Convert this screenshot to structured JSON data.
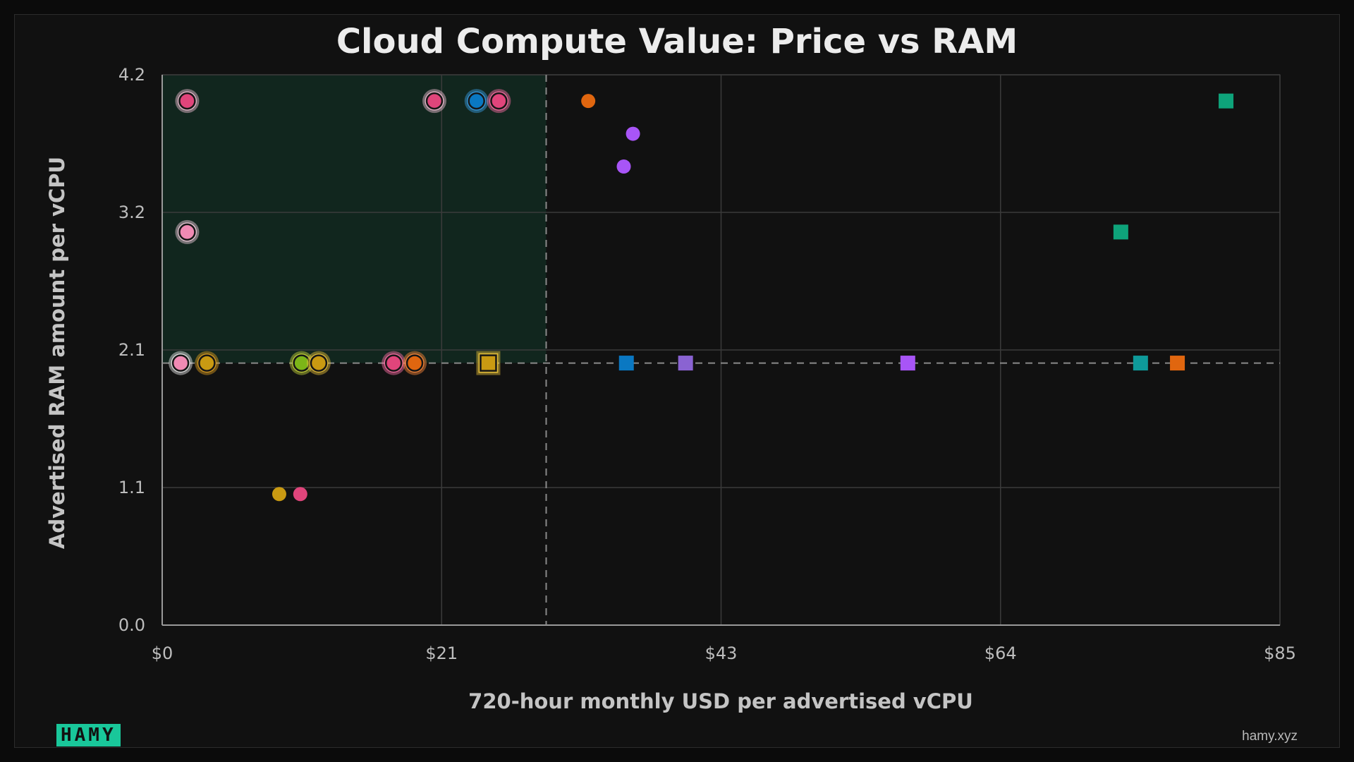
{
  "chart_data": {
    "type": "scatter",
    "title": "Cloud Compute Value: Price vs RAM",
    "xlabel": "720-hour monthly USD per advertised vCPU",
    "ylabel": "Advertised RAM amount per vCPU",
    "xlim": [
      0,
      85
    ],
    "ylim": [
      0,
      4.2
    ],
    "x_ticks": [
      "$0",
      "$21",
      "$43",
      "$64",
      "$85"
    ],
    "x_tick_values": [
      0,
      21.25,
      42.5,
      63.75,
      85
    ],
    "y_ticks": [
      "0.0",
      "1.1",
      "2.1",
      "3.2",
      "4.2"
    ],
    "y_tick_values": [
      0,
      1.05,
      2.1,
      3.15,
      4.2
    ],
    "grid": true,
    "legend": "none",
    "reference_lines": {
      "x": 29.2,
      "y": 2.0
    },
    "highlight_region": {
      "x": [
        0,
        29.2
      ],
      "y": [
        2.0,
        4.2
      ],
      "color": "#12382a"
    },
    "points": [
      {
        "x": 1.9,
        "y": 4.0,
        "shape": "circle",
        "color": "#e0457b",
        "highlight": true,
        "glow": "#f5c4d8"
      },
      {
        "x": 20.7,
        "y": 4.0,
        "shape": "circle",
        "color": "#e0457b",
        "highlight": true,
        "glow": "#f5c4d8"
      },
      {
        "x": 23.9,
        "y": 4.0,
        "shape": "circle",
        "color": "#0a78c2",
        "highlight": true,
        "glow": "#3aa0e6"
      },
      {
        "x": 25.6,
        "y": 4.0,
        "shape": "circle",
        "color": "#e0457b",
        "highlight": true,
        "glow": "#ff6fa6"
      },
      {
        "x": 32.4,
        "y": 4.0,
        "shape": "circle",
        "color": "#e0660f",
        "highlight": false
      },
      {
        "x": 35.8,
        "y": 3.75,
        "shape": "circle",
        "color": "#a855f7",
        "highlight": false
      },
      {
        "x": 35.1,
        "y": 3.5,
        "shape": "circle",
        "color": "#a855f7",
        "highlight": false
      },
      {
        "x": 1.9,
        "y": 3.0,
        "shape": "circle",
        "color": "#f08ab4",
        "highlight": true,
        "glow": "#f7d2e2"
      },
      {
        "x": 1.4,
        "y": 2.0,
        "shape": "circle",
        "color": "#f08ab4",
        "highlight": true,
        "glow": "#eeeeee"
      },
      {
        "x": 3.4,
        "y": 2.0,
        "shape": "circle",
        "color": "#c99a12",
        "highlight": true,
        "glow": "#e0a020"
      },
      {
        "x": 10.6,
        "y": 2.0,
        "shape": "circle",
        "color": "#7cb518",
        "highlight": true,
        "glow": "#c8d63a"
      },
      {
        "x": 11.9,
        "y": 2.0,
        "shape": "circle",
        "color": "#c99a12",
        "highlight": true,
        "glow": "#e8c23a"
      },
      {
        "x": 17.6,
        "y": 2.0,
        "shape": "circle",
        "color": "#e0457b",
        "highlight": true,
        "glow": "#ff6fa6"
      },
      {
        "x": 19.2,
        "y": 2.0,
        "shape": "circle",
        "color": "#e0660f",
        "highlight": true,
        "glow": "#ff8a3a"
      },
      {
        "x": 24.8,
        "y": 2.0,
        "shape": "square",
        "color": "#c99a12",
        "highlight": true,
        "glow": "#e8c23a"
      },
      {
        "x": 35.3,
        "y": 2.0,
        "shape": "square",
        "color": "#0a78c2",
        "highlight": false
      },
      {
        "x": 39.8,
        "y": 2.0,
        "shape": "square",
        "color": "#8a63d2",
        "highlight": false
      },
      {
        "x": 56.7,
        "y": 2.0,
        "shape": "square",
        "color": "#a855f7",
        "highlight": false
      },
      {
        "x": 74.4,
        "y": 2.0,
        "shape": "square",
        "color": "#0e9a9a",
        "highlight": false
      },
      {
        "x": 77.2,
        "y": 2.0,
        "shape": "square",
        "color": "#e0660f",
        "highlight": false
      },
      {
        "x": 72.9,
        "y": 3.0,
        "shape": "square",
        "color": "#0ea37a",
        "highlight": false
      },
      {
        "x": 80.9,
        "y": 4.0,
        "shape": "square",
        "color": "#0ea37a",
        "highlight": false
      },
      {
        "x": 8.9,
        "y": 1.0,
        "shape": "circle",
        "color": "#c99a12",
        "highlight": false
      },
      {
        "x": 10.5,
        "y": 1.0,
        "shape": "circle",
        "color": "#e0457b",
        "highlight": false
      }
    ]
  },
  "footer": {
    "logo_text": "HAMY",
    "site": "hamy.xyz"
  }
}
